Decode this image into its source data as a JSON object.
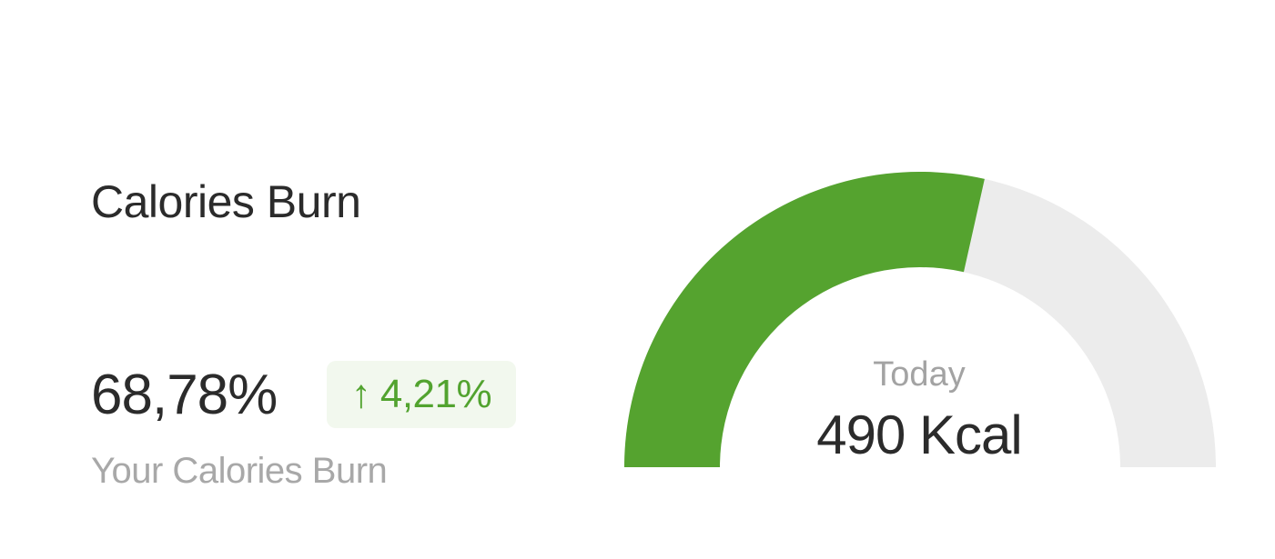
{
  "card": {
    "title": "Calories Burn",
    "percent": "68,78%",
    "change": {
      "icon": "arrow-up-icon",
      "arrow": "↑",
      "value": "4,21%",
      "color": "#52a32f",
      "background": "#f2f8ee"
    },
    "subtitle": "Your Calories Burn"
  },
  "gauge": {
    "label": "Today",
    "value_text": "490 Kcal",
    "progress_fraction": 0.57,
    "fill_color": "#55a32f",
    "track_color": "#ececec"
  }
}
